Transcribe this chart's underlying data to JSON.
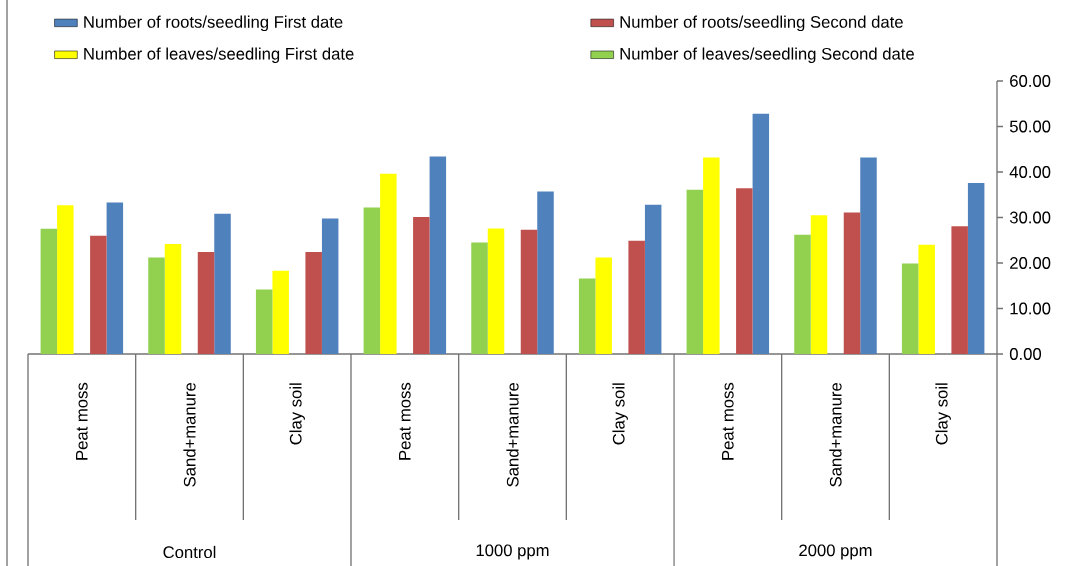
{
  "chart_data": {
    "type": "bar",
    "categories": [
      "Peat moss",
      "Sand+manure",
      "Clay soil",
      "Peat moss",
      "Sand+manure",
      "Clay soil",
      "Peat moss",
      "Sand+manure",
      "Clay soil"
    ],
    "series": [
      {
        "name": "Number of leaves/seedling Second date",
        "color": "#92d050",
        "values": [
          27.5,
          21.2,
          14.2,
          32.2,
          24.5,
          16.6,
          36.1,
          26.2,
          19.9
        ]
      },
      {
        "name": "Number of leaves/seedling First date",
        "color": "#ffff00",
        "values": [
          32.7,
          24.2,
          18.3,
          39.6,
          27.6,
          21.2,
          43.2,
          30.5,
          24.0
        ]
      },
      {
        "name": "Number of roots/seedling Second date",
        "color": "#c0504d",
        "values": [
          26.0,
          22.4,
          22.4,
          30.1,
          27.3,
          24.9,
          36.4,
          31.1,
          28.1
        ]
      },
      {
        "name": "Number of roots/seedling First date",
        "color": "#4f81bd",
        "values": [
          33.3,
          30.8,
          29.8,
          43.4,
          35.7,
          32.8,
          52.8,
          43.2,
          37.6
        ]
      }
    ],
    "ylim": [
      0,
      60
    ],
    "yticks": [
      {
        "value": 0,
        "label": "0.00"
      },
      {
        "value": 10,
        "label": "10.00"
      },
      {
        "value": 20,
        "label": "20.00"
      },
      {
        "value": 30,
        "label": "30.00"
      },
      {
        "value": 40,
        "label": "40.00"
      },
      {
        "value": 50,
        "label": "50.00"
      },
      {
        "value": 60,
        "label": "60.00"
      }
    ],
    "annotations": [
      "Control",
      "1000 ppm",
      "2000 ppm"
    ],
    "legend": "top",
    "grid": false
  }
}
